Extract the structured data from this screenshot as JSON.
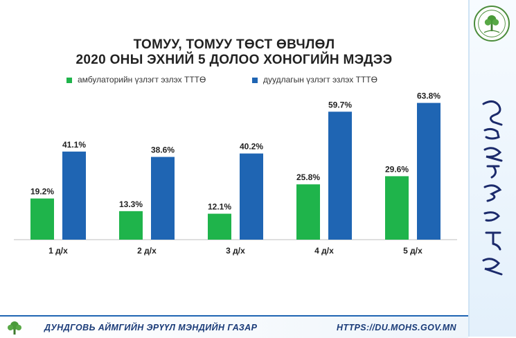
{
  "header": {
    "title_line1": "ТОМУУ, ТОМУУ ТӨСТ ӨВЧЛӨЛ",
    "title_line2": "2020 ОНЫ ЭХНИЙ 5 ДОЛОО ХОНОГИЙН  МЭДЭЭ"
  },
  "legend": {
    "series1": "амбулаторийн үзлэгт эзлэх ТТТӨ",
    "series2": "дуудлагын үзлэгт эзлэх ТТТӨ"
  },
  "footer": {
    "organization": "ДУНДГОВЬ АЙМГИЙН ЭРҮҮЛ МЭНДИЙН ГАЗАР",
    "website": "HTTPS://DU.MOHS.GOV.MN"
  },
  "icons": {
    "top_logo": "health-department-tree-logo",
    "bottom_logo": "tree-logo"
  },
  "colors": {
    "series1": "#1fb44b",
    "series2": "#1f65b3",
    "footer_text": "#1a3b78"
  },
  "chart_data": {
    "type": "bar",
    "title": "ТОМУУ, ТОМУУ ТӨСТ ӨВЧЛӨЛ 2020 ОНЫ ЭХНИЙ 5 ДОЛОО ХОНОГИЙН  МЭДЭЭ",
    "categories": [
      "1 д/х",
      "2 д/х",
      "3 д/х",
      "4 д/х",
      "5 д/х"
    ],
    "series": [
      {
        "name": "амбулаторийн үзлэгт эзлэх ТТТӨ",
        "values": [
          19.2,
          13.3,
          12.1,
          25.8,
          29.6
        ],
        "labels": [
          "19.2%",
          "13.3%",
          "12.1%",
          "25.8%",
          "29.6%"
        ]
      },
      {
        "name": "дуудлагын үзлэгт эзлэх ТТТӨ",
        "values": [
          41.1,
          38.6,
          40.2,
          59.7,
          63.8
        ],
        "labels": [
          "41.1%",
          "38.6%",
          "40.2%",
          "59.7%",
          "63.8%"
        ]
      }
    ],
    "ylim": [
      0,
      70
    ],
    "grid": false,
    "legend_position": "top-left"
  }
}
